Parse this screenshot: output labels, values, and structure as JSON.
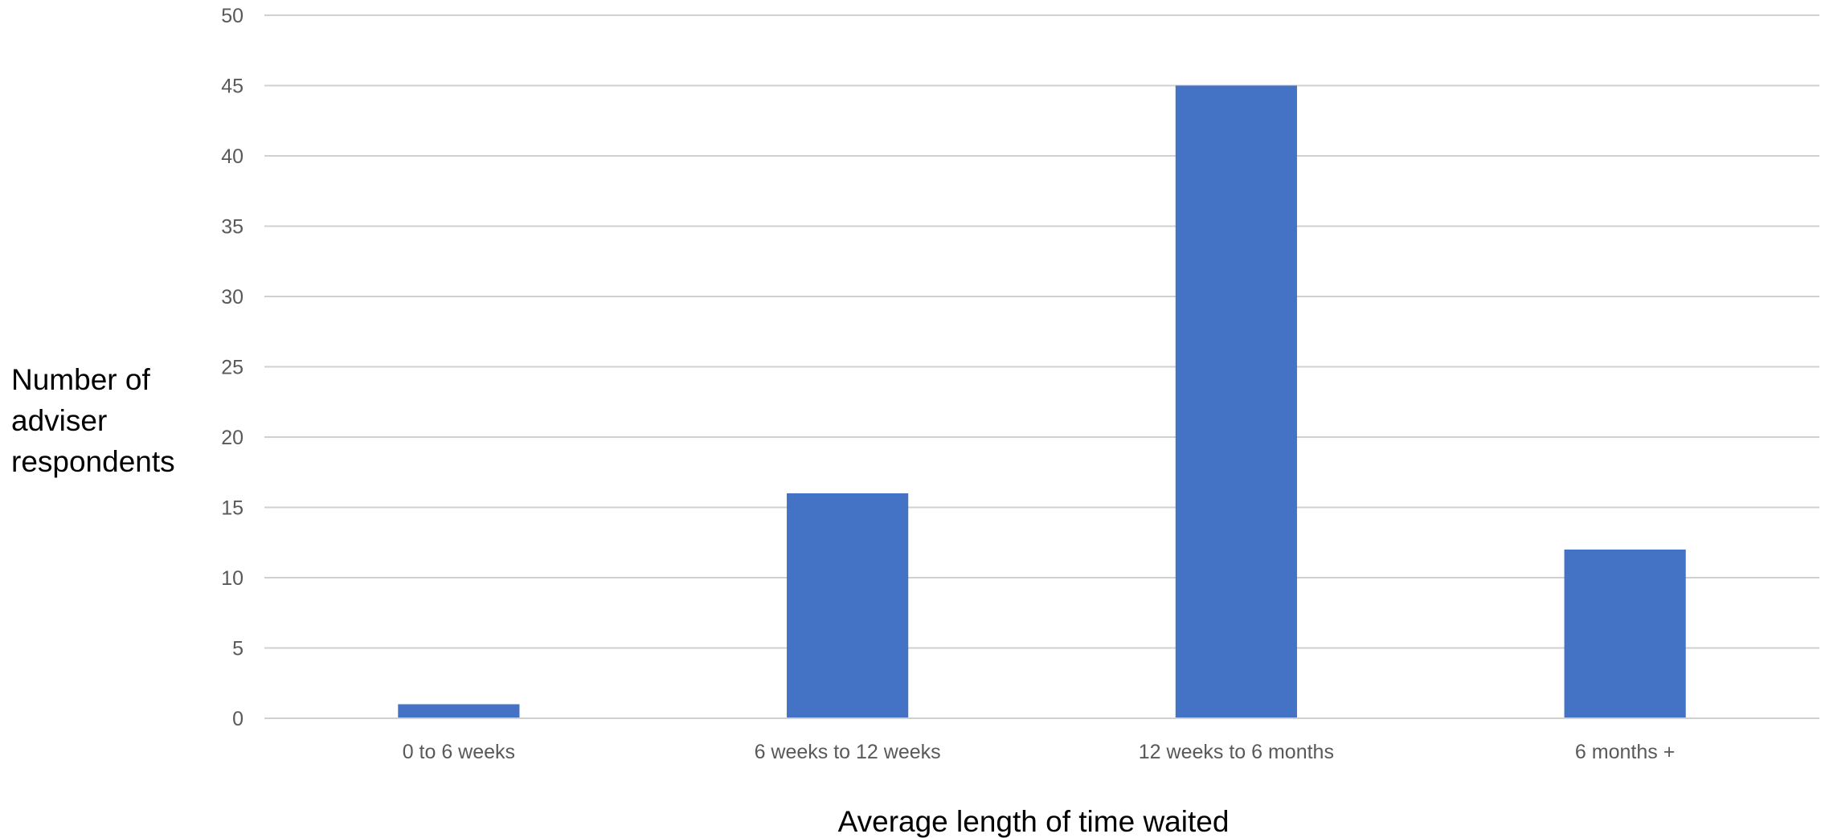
{
  "chart_data": {
    "type": "bar",
    "categories": [
      "0 to 6 weeks",
      "6 weeks to 12 weeks",
      "12 weeks to 6 months",
      "6 months +"
    ],
    "values": [
      1,
      16,
      45,
      12
    ],
    "xlabel": "Average length of time waited",
    "ylabel": [
      "Number of",
      "adviser",
      "respondents"
    ],
    "ylim": [
      0,
      50
    ],
    "yticks": [
      0,
      5,
      10,
      15,
      20,
      25,
      30,
      35,
      40,
      45,
      50
    ],
    "grid": true,
    "legend": "none",
    "bar_color": "#4472C4"
  }
}
